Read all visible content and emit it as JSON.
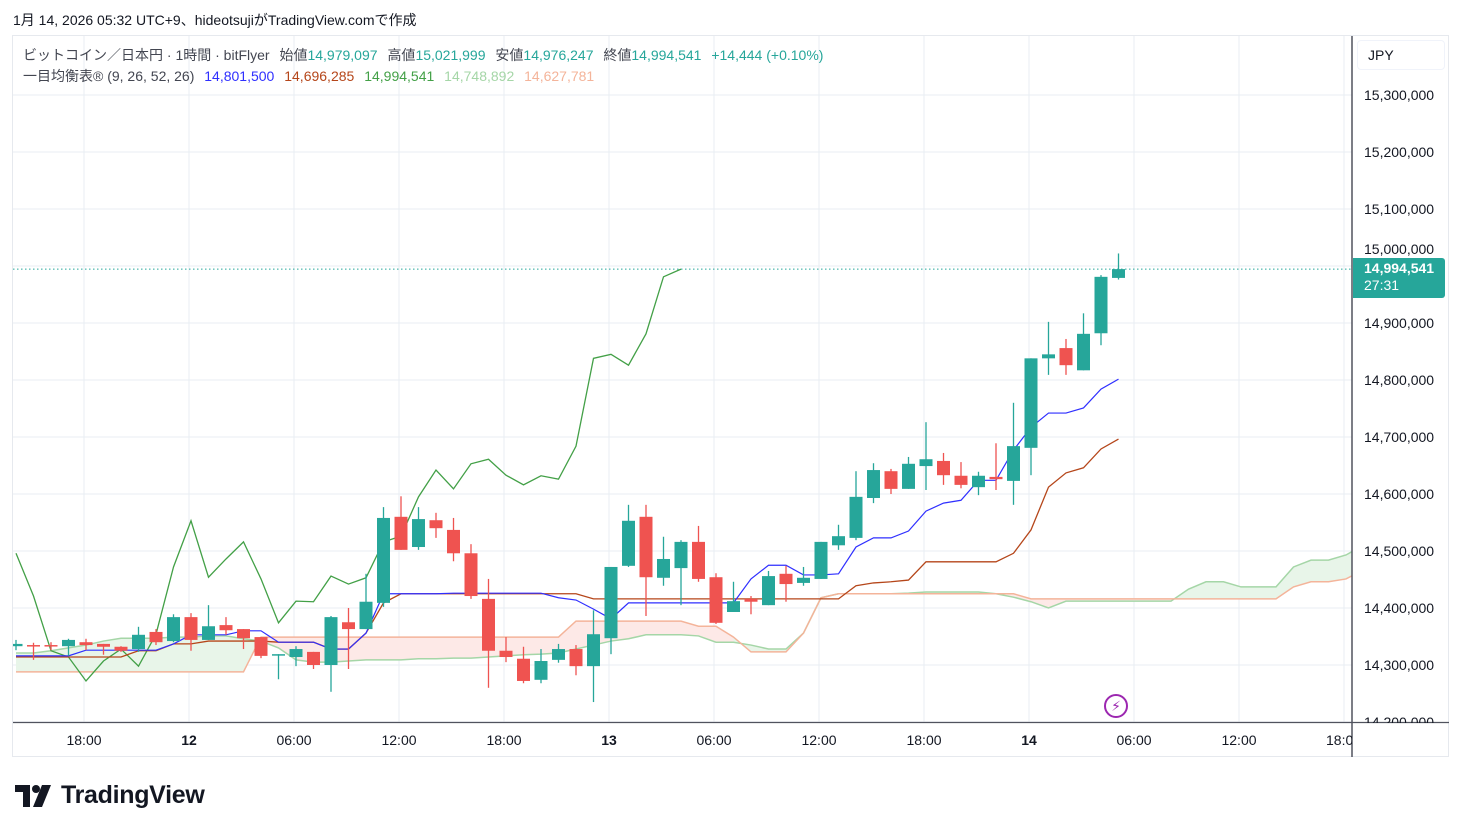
{
  "caption": "1月 14, 2026 05:32 UTC+9、hideotsujiがTradingView.comで作成",
  "legend": {
    "symbol": "ビットコイン／日本円 · 1時間 · bitFlyer",
    "open_label": "始値",
    "open": "14,979,097",
    "high_label": "高値",
    "high": "15,021,999",
    "low_label": "安値",
    "low": "14,976,247",
    "close_label": "終値",
    "close": "14,994,541",
    "change": "+14,444 (+0.10%)",
    "indicator": "一目均衡表® (9, 26, 52, 26)",
    "tenkan": "14,801,500",
    "kijun": "14,696,285",
    "chikou": "14,994,541",
    "span_a": "14,748,892",
    "span_b": "14,627,781"
  },
  "currency_button": "JPY",
  "price_axis": [
    "15,300,000",
    "15,200,000",
    "15,100,000",
    "15,000,000",
    "14,900,000",
    "14,800,000",
    "14,700,000",
    "14,600,000",
    "14,500,000",
    "14,400,000",
    "14,300,000",
    "14,200,000"
  ],
  "current_price": {
    "value": "14,994,541",
    "countdown": "27:31"
  },
  "time_axis": [
    {
      "label": "18:00",
      "bold": false
    },
    {
      "label": "12",
      "bold": true
    },
    {
      "label": "06:00",
      "bold": false
    },
    {
      "label": "12:00",
      "bold": false
    },
    {
      "label": "18:00",
      "bold": false
    },
    {
      "label": "13",
      "bold": true
    },
    {
      "label": "06:00",
      "bold": false
    },
    {
      "label": "12:00",
      "bold": false
    },
    {
      "label": "18:00",
      "bold": false
    },
    {
      "label": "14",
      "bold": true
    },
    {
      "label": "06:00",
      "bold": false
    },
    {
      "label": "12:00",
      "bold": false
    },
    {
      "label": "18:0",
      "bold": false
    }
  ],
  "logo_text": "TradingView",
  "colors": {
    "up": "#26a69a",
    "down": "#ef5350",
    "tenkan": "#2f2fff",
    "kijun": "#b5461a",
    "chikou": "#43a047",
    "span_a": "#a5d6a7",
    "span_b": "#f4b49a",
    "cloud_up": "#e8f5e9",
    "cloud_down": "#fde9e7",
    "text_green": "#26a69a"
  },
  "chart_data": {
    "type": "candlestick",
    "interval": "1h",
    "first_candle": "1月11日 14:00",
    "ylim": [
      14200000,
      15300000
    ],
    "candles_ohlc": [
      [
        14333000,
        14344000,
        14326000,
        14337000
      ],
      [
        14335000,
        14339000,
        14309000,
        14333000
      ],
      [
        14335000,
        14340000,
        14326000,
        14333000
      ],
      [
        14333000,
        14346000,
        14316000,
        14344000
      ],
      [
        14340000,
        14346000,
        14326000,
        14335000
      ],
      [
        14337000,
        14337000,
        14318000,
        14332000
      ],
      [
        14332000,
        14333000,
        14323000,
        14325000
      ],
      [
        14328000,
        14367000,
        14323000,
        14353000
      ],
      [
        14358000,
        14363000,
        14335000,
        14340000
      ],
      [
        14342000,
        14389000,
        14340000,
        14384000
      ],
      [
        14384000,
        14391000,
        14325000,
        14344000
      ],
      [
        14344000,
        14405000,
        14344000,
        14368000
      ],
      [
        14370000,
        14384000,
        14353000,
        14361000
      ],
      [
        14363000,
        14363000,
        14328000,
        14347000
      ],
      [
        14349000,
        14349000,
        14312000,
        14316000
      ],
      [
        14318000,
        14319000,
        14275000,
        14319000
      ],
      [
        14314000,
        14333000,
        14298000,
        14328000
      ],
      [
        14323000,
        14323000,
        14293000,
        14300000
      ],
      [
        14300000,
        14386000,
        14253000,
        14384000
      ],
      [
        14375000,
        14400000,
        14293000,
        14363000
      ],
      [
        14363000,
        14460000,
        14363000,
        14411000
      ],
      [
        14409000,
        14577000,
        14402000,
        14558000
      ],
      [
        14560000,
        14596000,
        14502000,
        14502000
      ],
      [
        14507000,
        14577000,
        14502000,
        14556000
      ],
      [
        14554000,
        14567000,
        14523000,
        14540000
      ],
      [
        14537000,
        14558000,
        14482000,
        14496000
      ],
      [
        14496000,
        14512000,
        14416000,
        14421000
      ],
      [
        14416000,
        14451000,
        14260000,
        14325000
      ],
      [
        14325000,
        14349000,
        14305000,
        14314000
      ],
      [
        14311000,
        14332000,
        14268000,
        14272000
      ],
      [
        14274000,
        14328000,
        14268000,
        14307000
      ],
      [
        14309000,
        14337000,
        14304000,
        14328000
      ],
      [
        14328000,
        14335000,
        14282000,
        14298000
      ],
      [
        14298000,
        14396000,
        14235000,
        14354000
      ],
      [
        14347000,
        14472000,
        14319000,
        14472000
      ],
      [
        14474000,
        14581000,
        14472000,
        14553000
      ],
      [
        14560000,
        14581000,
        14386000,
        14454000
      ],
      [
        14453000,
        14525000,
        14439000,
        14486000
      ],
      [
        14470000,
        14519000,
        14405000,
        14516000
      ],
      [
        14516000,
        14544000,
        14446000,
        14451000
      ],
      [
        14454000,
        14461000,
        14372000,
        14374000
      ],
      [
        14393000,
        14446000,
        14393000,
        14412000
      ],
      [
        14416000,
        14421000,
        14389000,
        14411000
      ],
      [
        14405000,
        14465000,
        14405000,
        14456000
      ],
      [
        14460000,
        14474000,
        14411000,
        14442000
      ],
      [
        14444000,
        14472000,
        14439000,
        14453000
      ],
      [
        14451000,
        14516000,
        14451000,
        14516000
      ],
      [
        14510000,
        14546000,
        14502000,
        14526000
      ],
      [
        14523000,
        14640000,
        14519000,
        14595000
      ],
      [
        14593000,
        14654000,
        14584000,
        14642000
      ],
      [
        14640000,
        14644000,
        14600000,
        14609000
      ],
      [
        14609000,
        14665000,
        14609000,
        14653000
      ],
      [
        14649000,
        14726000,
        14607000,
        14661000
      ],
      [
        14658000,
        14672000,
        14616000,
        14633000
      ],
      [
        14632000,
        14656000,
        14610000,
        14616000
      ],
      [
        14612000,
        14639000,
        14598000,
        14632000
      ],
      [
        14630000,
        14689000,
        14607000,
        14626000
      ],
      [
        14623000,
        14760000,
        14581000,
        14684000
      ],
      [
        14681000,
        14838000,
        14633000,
        14838000
      ],
      [
        14838000,
        14902000,
        14809000,
        14845000
      ],
      [
        14856000,
        14872000,
        14809000,
        14826000
      ],
      [
        14817000,
        14917000,
        14817000,
        14881000
      ],
      [
        14882000,
        14984000,
        14861000,
        14981000
      ],
      [
        14979097,
        15021999,
        14976247,
        14994541
      ]
    ],
    "tenkan": [
      14316000,
      14316000,
      14316000,
      14316000,
      14326000,
      14326000,
      14326000,
      14326000,
      14326000,
      14337000,
      14353000,
      14353000,
      14353000,
      14360000,
      14360000,
      14340000,
      14340000,
      14340000,
      14328000,
      14328000,
      14356000,
      14425000,
      14425000,
      14425000,
      14425000,
      14426000,
      14426000,
      14426000,
      14426000,
      14426000,
      14426000,
      14418000,
      14414000,
      14398000,
      14381000,
      14409000,
      14409000,
      14409000,
      14409000,
      14409000,
      14409000,
      14409000,
      14451000,
      14475000,
      14475000,
      14458000,
      14458000,
      14460000,
      14507000,
      14523000,
      14523000,
      14535000,
      14570000,
      14584000,
      14589000,
      14624000,
      14624000,
      14677000,
      14717000,
      14742000,
      14742000,
      14751000,
      14784000,
      14801500
    ],
    "kijun": [
      14314000,
      14314000,
      14314000,
      14314000,
      14314000,
      14314000,
      14314000,
      14325000,
      14325000,
      14337000,
      14337000,
      14342000,
      14342000,
      14342000,
      14342000,
      14340000,
      14340000,
      14340000,
      14328000,
      14328000,
      14356000,
      14409000,
      14425000,
      14425000,
      14425000,
      14425000,
      14425000,
      14425000,
      14425000,
      14425000,
      14425000,
      14425000,
      14425000,
      14416000,
      14416000,
      14416000,
      14416000,
      14416000,
      14416000,
      14416000,
      14416000,
      14416000,
      14416000,
      14416000,
      14416000,
      14416000,
      14416000,
      14416000,
      14439000,
      14444000,
      14446000,
      14449000,
      14481000,
      14481000,
      14481000,
      14481000,
      14481000,
      14496000,
      14537000,
      14612000,
      14637000,
      14646000,
      14679000,
      14696285
    ],
    "chikou_shift": 25,
    "span_a": [
      14321000,
      14321000,
      14325000,
      14330000,
      14335000,
      14342000,
      14347000,
      14347000,
      14347000,
      14349000,
      14349000,
      14351000,
      14351000,
      14346000,
      14342000,
      14330000,
      14309000,
      14305000,
      14305000,
      14307000,
      14309000,
      14309000,
      14309000,
      14311000,
      14311000,
      14312000,
      14312000,
      14314000,
      14316000,
      14318000,
      14319000,
      14321000,
      14328000,
      14335000,
      14342000,
      14346000,
      14353000,
      14353000,
      14353000,
      14351000,
      14340000,
      14340000,
      14335000,
      14328000,
      14328000,
      14356000,
      14418000,
      14425000,
      14425000,
      14425000,
      14425000,
      14426000,
      14428000,
      14428000,
      14428000,
      14428000,
      14425000,
      14419000,
      14411000,
      14400000,
      14412000,
      14412000,
      14412000,
      14412000,
      14412000,
      14412000,
      14412000,
      14433000,
      14446000,
      14446000,
      14437000,
      14437000,
      14437000,
      14472000,
      14484000,
      14484000,
      14493000,
      14510000
    ],
    "span_b": [
      14288000,
      14288000,
      14288000,
      14288000,
      14288000,
      14288000,
      14288000,
      14288000,
      14288000,
      14288000,
      14288000,
      14288000,
      14288000,
      14288000,
      14349000,
      14349000,
      14349000,
      14349000,
      14349000,
      14349000,
      14349000,
      14349000,
      14349000,
      14349000,
      14349000,
      14349000,
      14349000,
      14349000,
      14349000,
      14349000,
      14349000,
      14349000,
      14377000,
      14377000,
      14377000,
      14377000,
      14377000,
      14377000,
      14377000,
      14368000,
      14368000,
      14349000,
      14323000,
      14323000,
      14323000,
      14356000,
      14418000,
      14425000,
      14425000,
      14425000,
      14425000,
      14425000,
      14425000,
      14425000,
      14425000,
      14425000,
      14425000,
      14425000,
      14416000,
      14416000,
      14416000,
      14416000,
      14416000,
      14416000,
      14416000,
      14416000,
      14416000,
      14416000,
      14416000,
      14416000,
      14416000,
      14416000,
      14416000,
      14437000,
      14446000,
      14446000,
      14451000,
      14467000
    ]
  }
}
